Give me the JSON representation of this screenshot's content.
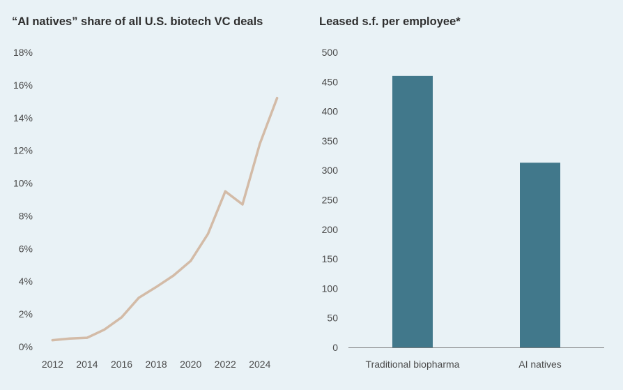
{
  "chart_data": [
    {
      "type": "line",
      "title": "“AI natives” share of all U.S. biotech VC deals",
      "x": [
        2012,
        2013,
        2014,
        2015,
        2016,
        2017,
        2018,
        2019,
        2020,
        2021,
        2022,
        2023,
        2024,
        2025
      ],
      "series": [
        {
          "values": [
            0.4,
            0.5,
            0.55,
            1.05,
            1.8,
            3.0,
            3.65,
            4.35,
            5.25,
            6.9,
            9.5,
            8.7,
            12.4,
            15.2
          ]
        }
      ],
      "x_ticks": [
        "2012",
        "2014",
        "2016",
        "2018",
        "2020",
        "2022",
        "2024"
      ],
      "y_ticks": [
        "0%",
        "2%",
        "4%",
        "6%",
        "8%",
        "10%",
        "12%",
        "14%",
        "16%",
        "18%"
      ],
      "ylim": [
        0,
        18
      ],
      "xlim": [
        2011.5,
        2025.5
      ],
      "grid": false,
      "colors": {
        "line": "#d3bba7"
      }
    },
    {
      "type": "bar",
      "title": "Leased s.f. per employee*",
      "categories": [
        "Traditional biopharma",
        "AI natives"
      ],
      "values": [
        460,
        313
      ],
      "y_ticks": [
        "0",
        "50",
        "100",
        "150",
        "200",
        "250",
        "300",
        "350",
        "400",
        "450",
        "500"
      ],
      "ylim": [
        0,
        500
      ],
      "grid": false,
      "colors": {
        "bar": "#41788b",
        "axis": "#7a7a7a"
      }
    }
  ]
}
